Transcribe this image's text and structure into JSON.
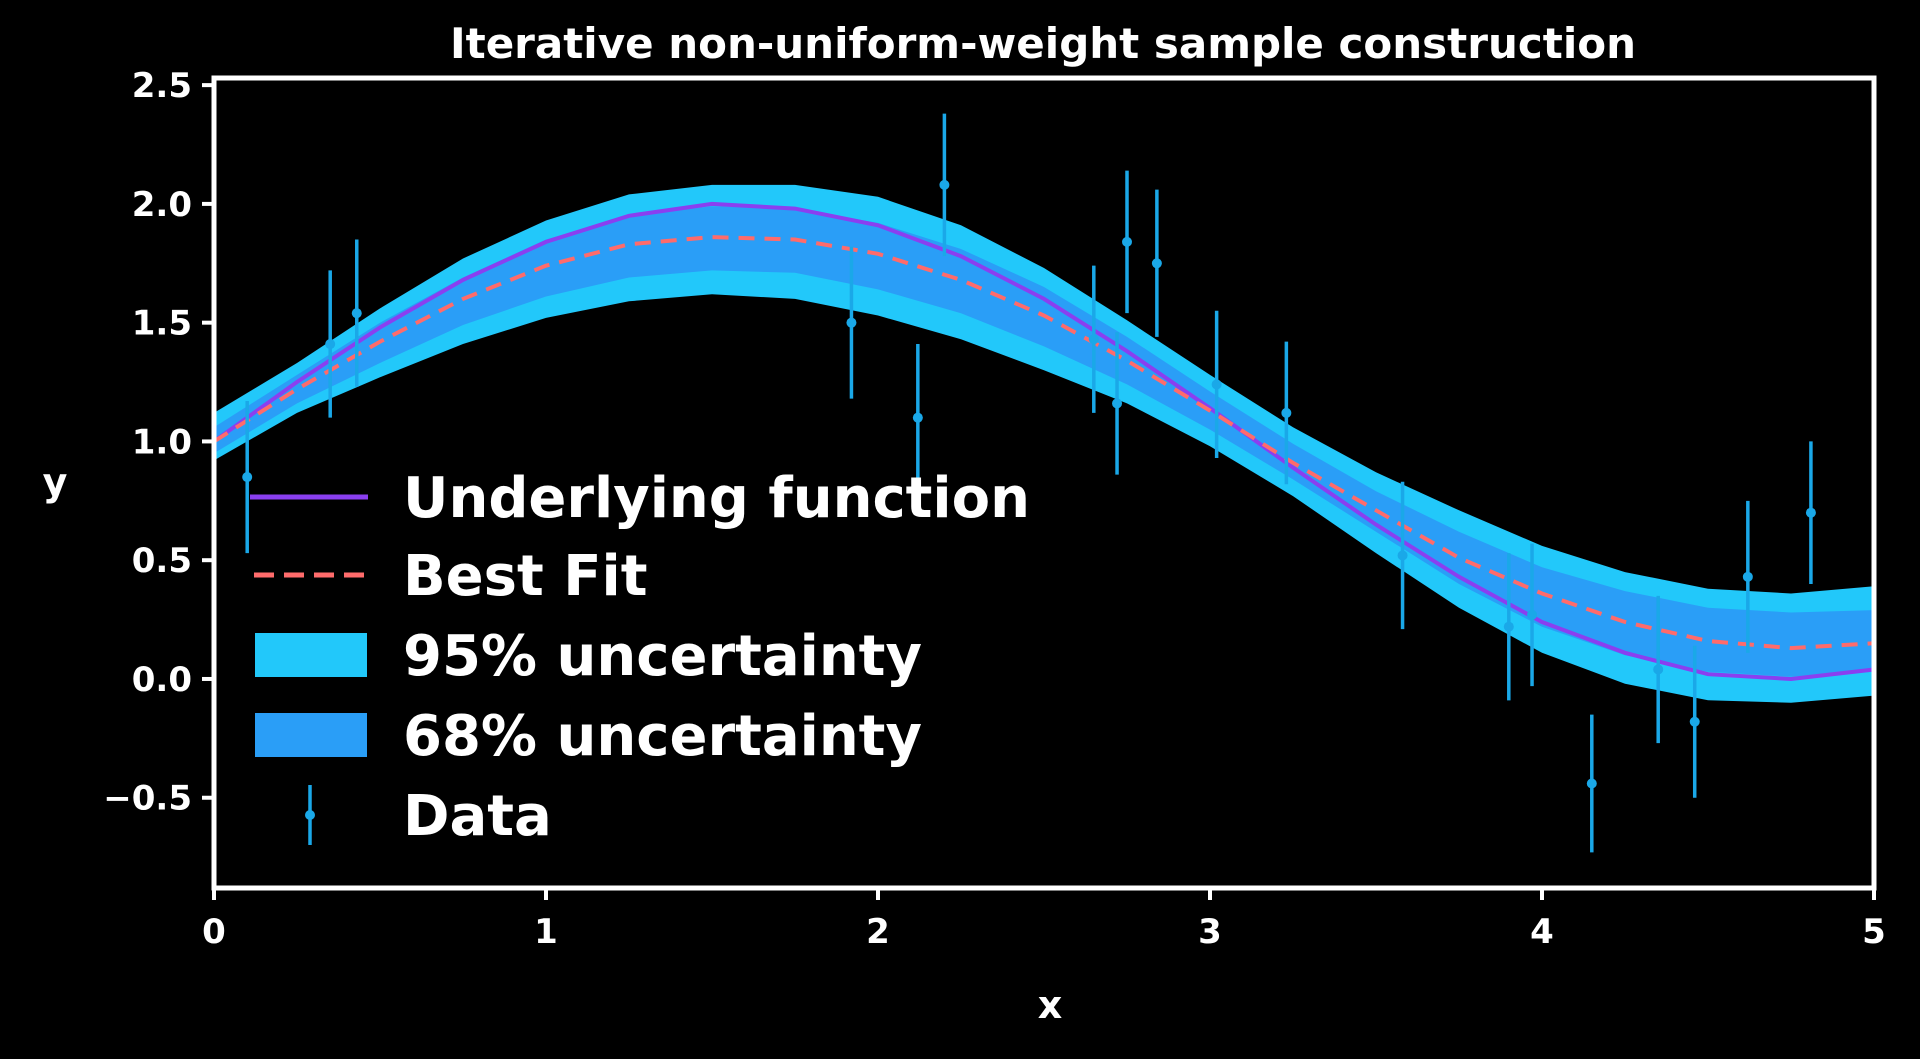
{
  "chart_data": {
    "type": "line",
    "title": "Iterative non-uniform-weight sample construction",
    "xlabel": "x",
    "ylabel": "y",
    "xlim": [
      0,
      5
    ],
    "ylim": [
      -0.88,
      2.53
    ],
    "xticks": [
      0,
      1,
      2,
      3,
      4,
      5
    ],
    "xtick_labels": [
      "0",
      "1",
      "2",
      "3",
      "4",
      "5"
    ],
    "yticks": [
      -0.5,
      0.0,
      0.5,
      1.0,
      1.5,
      2.0,
      2.5
    ],
    "ytick_labels": [
      "−0.5",
      "0.0",
      "0.5",
      "1.0",
      "1.5",
      "2.0",
      "2.5"
    ],
    "legend_location": "lower-left",
    "colors": {
      "background": "#000000",
      "axes": "#ffffff",
      "underlying": "#8a3ff0",
      "best_fit": "#ff6b6b",
      "band95": "#22c8fa",
      "band68": "#2a9ef7",
      "data": "#1aa8e8"
    },
    "legend": [
      {
        "key": "underlying",
        "label": "Underlying function"
      },
      {
        "key": "best_fit",
        "label": "Best Fit"
      },
      {
        "key": "band95",
        "label": "95% uncertainty"
      },
      {
        "key": "band68",
        "label": "68% uncertainty"
      },
      {
        "key": "data",
        "label": "Data"
      }
    ],
    "series": [
      {
        "name": "Underlying function",
        "key": "underlying",
        "x": [
          0.0,
          0.25,
          0.5,
          0.75,
          1.0,
          1.25,
          1.5,
          1.75,
          2.0,
          2.25,
          2.5,
          2.75,
          3.0,
          3.25,
          3.5,
          3.75,
          4.0,
          4.25,
          4.5,
          4.75,
          5.0
        ],
        "y": [
          1.0,
          1.25,
          1.48,
          1.68,
          1.84,
          1.95,
          2.0,
          1.98,
          1.91,
          1.78,
          1.6,
          1.38,
          1.14,
          0.89,
          0.65,
          0.43,
          0.24,
          0.11,
          0.02,
          0.0,
          0.04
        ]
      },
      {
        "name": "Best Fit",
        "key": "best_fit",
        "x": [
          0.0,
          0.25,
          0.5,
          0.75,
          1.0,
          1.25,
          1.5,
          1.75,
          2.0,
          2.25,
          2.5,
          2.75,
          3.0,
          3.25,
          3.5,
          3.75,
          4.0,
          4.25,
          4.5,
          4.75,
          5.0
        ],
        "y": [
          1.0,
          1.22,
          1.42,
          1.6,
          1.74,
          1.83,
          1.86,
          1.85,
          1.79,
          1.68,
          1.53,
          1.34,
          1.13,
          0.91,
          0.71,
          0.51,
          0.36,
          0.24,
          0.16,
          0.13,
          0.15
        ]
      },
      {
        "name": "95% uncertainty",
        "key": "band95",
        "x": [
          0.0,
          0.25,
          0.5,
          0.75,
          1.0,
          1.25,
          1.5,
          1.75,
          2.0,
          2.25,
          2.5,
          2.75,
          3.0,
          3.25,
          3.5,
          3.75,
          4.0,
          4.25,
          4.5,
          4.75,
          5.0
        ],
        "lower": [
          0.92,
          1.12,
          1.27,
          1.41,
          1.52,
          1.59,
          1.62,
          1.6,
          1.53,
          1.43,
          1.3,
          1.16,
          0.98,
          0.77,
          0.53,
          0.3,
          0.11,
          -0.02,
          -0.09,
          -0.1,
          -0.07
        ],
        "upper": [
          1.12,
          1.33,
          1.56,
          1.77,
          1.93,
          2.04,
          2.08,
          2.08,
          2.03,
          1.91,
          1.73,
          1.51,
          1.28,
          1.06,
          0.87,
          0.71,
          0.56,
          0.45,
          0.38,
          0.36,
          0.39
        ]
      },
      {
        "name": "68% uncertainty",
        "key": "band68",
        "x": [
          0.0,
          0.25,
          0.5,
          0.75,
          1.0,
          1.25,
          1.5,
          1.75,
          2.0,
          2.25,
          2.5,
          2.75,
          3.0,
          3.25,
          3.5,
          3.75,
          4.0,
          4.25,
          4.5,
          4.75,
          5.0
        ],
        "lower": [
          0.95,
          1.16,
          1.33,
          1.49,
          1.61,
          1.69,
          1.72,
          1.71,
          1.64,
          1.54,
          1.4,
          1.24,
          1.05,
          0.84,
          0.62,
          0.4,
          0.22,
          0.1,
          0.03,
          0.01,
          0.03
        ],
        "upper": [
          1.06,
          1.28,
          1.5,
          1.69,
          1.85,
          1.95,
          1.99,
          1.98,
          1.92,
          1.81,
          1.65,
          1.44,
          1.21,
          0.99,
          0.79,
          0.62,
          0.47,
          0.37,
          0.3,
          0.28,
          0.29
        ]
      }
    ],
    "data_points": {
      "name": "Data",
      "key": "data",
      "x": [
        0.1,
        0.35,
        0.43,
        1.92,
        2.12,
        2.2,
        2.65,
        2.72,
        2.75,
        2.84,
        3.02,
        3.23,
        3.58,
        3.9,
        3.97,
        4.15,
        4.35,
        4.46,
        4.62,
        4.81
      ],
      "y": [
        0.85,
        1.41,
        1.54,
        1.5,
        1.1,
        2.08,
        1.43,
        1.16,
        1.84,
        1.75,
        1.24,
        1.12,
        0.52,
        0.22,
        0.27,
        -0.44,
        0.04,
        -0.18,
        0.43,
        0.7
      ],
      "yerr": [
        0.32,
        0.31,
        0.31,
        0.32,
        0.31,
        0.3,
        0.31,
        0.3,
        0.3,
        0.31,
        0.31,
        0.3,
        0.31,
        0.31,
        0.3,
        0.29,
        0.31,
        0.32,
        0.32,
        0.3
      ]
    }
  }
}
